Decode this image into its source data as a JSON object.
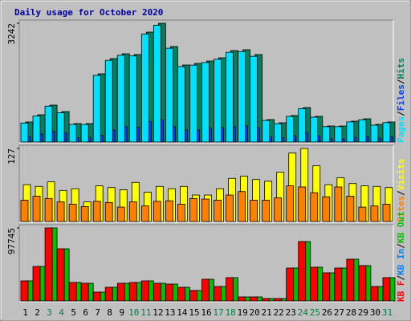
{
  "chart_data": [
    {
      "type": "bar",
      "title": "Daily usage for October 2020",
      "series": [
        {
          "name": "Hits",
          "color": "#00805c",
          "values": [
            548,
            745,
            1008,
            832,
            504,
            504,
            1862,
            2278,
            2410,
            2388,
            3001,
            3242,
            2607,
            2103,
            2147,
            2212,
            2300,
            2497,
            2519,
            2388,
            613,
            526,
            723,
            942,
            701,
            438,
            438,
            570,
            635,
            482,
            548
          ]
        },
        {
          "name": "Files",
          "color": "#0040ff",
          "values": [
            150,
            220,
            300,
            250,
            120,
            130,
            180,
            330,
            420,
            400,
            560,
            600,
            420,
            330,
            330,
            380,
            390,
            420,
            440,
            390,
            140,
            120,
            170,
            260,
            170,
            90,
            90,
            130,
            150,
            110,
            140
          ]
        },
        {
          "name": "Pages",
          "color": "#00e0ff",
          "values": [
            520,
            710,
            980,
            800,
            480,
            480,
            1820,
            2230,
            2370,
            2350,
            2950,
            3190,
            2560,
            2060,
            2100,
            2170,
            2260,
            2450,
            2470,
            2340,
            590,
            500,
            700,
            910,
            680,
            420,
            420,
            550,
            610,
            460,
            530
          ]
        }
      ],
      "ylim": [
        0,
        3242
      ],
      "yticks": [
        3242
      ],
      "legend_separator": "/"
    },
    {
      "type": "bar",
      "series": [
        {
          "name": "Visits",
          "color": "#ffff00",
          "values": [
            64,
            61,
            69,
            54,
            57,
            34,
            62,
            59,
            55,
            68,
            51,
            61,
            57,
            61,
            46,
            46,
            57,
            75,
            79,
            73,
            70,
            86,
            119,
            127,
            97,
            64,
            76,
            66,
            62,
            61,
            59
          ]
        },
        {
          "name": "Sites",
          "color": "#ff8000",
          "values": [
            37,
            44,
            40,
            34,
            30,
            26,
            35,
            33,
            25,
            34,
            27,
            35,
            36,
            30,
            40,
            39,
            37,
            46,
            52,
            37,
            37,
            41,
            62,
            60,
            50,
            43,
            60,
            44,
            25,
            27,
            30
          ]
        }
      ],
      "ylim": [
        0,
        127
      ],
      "yticks": [
        127
      ],
      "legend_separator": "/"
    },
    {
      "type": "bar",
      "categories": [
        "1",
        "2",
        "3",
        "4",
        "5",
        "6",
        "7",
        "8",
        "9",
        "10",
        "11",
        "12",
        "13",
        "14",
        "15",
        "16",
        "17",
        "18",
        "19",
        "20",
        "21",
        "22",
        "23",
        "24",
        "25",
        "26",
        "27",
        "28",
        "29",
        "30",
        "31"
      ],
      "category_colors": [
        "#000000",
        "#000000",
        "#008040",
        "#008040",
        "#000000",
        "#000000",
        "#000000",
        "#000000",
        "#000000",
        "#008040",
        "#008040",
        "#000000",
        "#000000",
        "#000000",
        "#000000",
        "#000000",
        "#008040",
        "#008040",
        "#000000",
        "#000000",
        "#000000",
        "#000000",
        "#000000",
        "#008040",
        "#008040",
        "#000000",
        "#000000",
        "#000000",
        "#000000",
        "#000000",
        "#008040"
      ],
      "series": [
        {
          "name": "KB Out",
          "color": "#00c000",
          "values": [
            26853,
            46187,
            97745,
            69818,
            24705,
            23631,
            11815,
            18260,
            23631,
            24705,
            26853,
            23631,
            22557,
            18260,
            13963,
            29001,
            19334,
            31149,
            5371,
            5371,
            3222,
            3222,
            44038,
            79484,
            45112,
            37593,
            44038,
            55853,
            47261,
            19334,
            31149
          ]
        },
        {
          "name": "KB In",
          "color": "#0080ff",
          "values": [
            0,
            0,
            0,
            0,
            0,
            0,
            0,
            0,
            0,
            0,
            0,
            0,
            0,
            0,
            0,
            0,
            0,
            0,
            0,
            0,
            0,
            0,
            0,
            0,
            0,
            0,
            0,
            0,
            0,
            0,
            0
          ]
        },
        {
          "name": "KB F",
          "color": "#ff0000",
          "values": [
            26853,
            46187,
            97745,
            69818,
            24705,
            23631,
            11815,
            18260,
            23631,
            24705,
            26853,
            23631,
            22557,
            18260,
            13963,
            29001,
            19334,
            31149,
            5371,
            5371,
            3222,
            3222,
            44038,
            79484,
            45112,
            37593,
            44038,
            55853,
            47261,
            19334,
            31149
          ]
        }
      ],
      "ylim": [
        0,
        97745
      ],
      "yticks": [
        97745
      ],
      "legend_separator": "/"
    }
  ]
}
